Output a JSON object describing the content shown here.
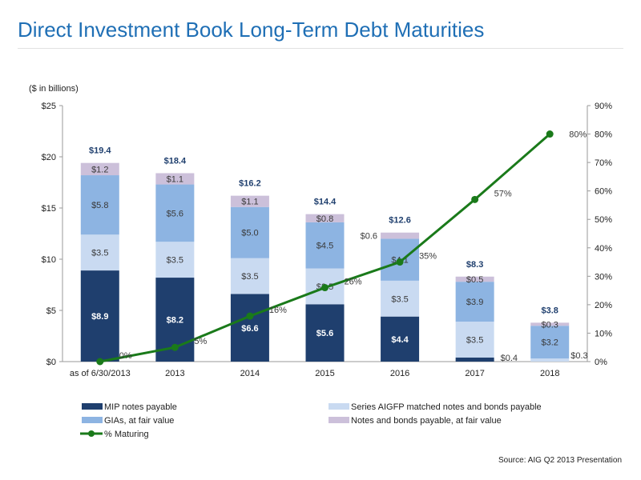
{
  "page": {
    "title": "Direct Investment Book Long-Term Debt Maturities",
    "source": "Source:  AIG Q2 2013 Presentation"
  },
  "chart_data": {
    "type": "bar",
    "stacked": true,
    "unit_note": "($ in billions)",
    "categories": [
      "as of 6/30/2013",
      "2013",
      "2014",
      "2015",
      "2016",
      "2017",
      "2018"
    ],
    "ylim": [
      0,
      25
    ],
    "y_ticks": [
      "$0",
      "$5",
      "$10",
      "$15",
      "$20",
      "$25"
    ],
    "y2lim": [
      0,
      90
    ],
    "y2_ticks": [
      "0%",
      "10%",
      "20%",
      "30%",
      "40%",
      "50%",
      "60%",
      "70%",
      "80%",
      "90%"
    ],
    "grid": false,
    "legend_position": "bottom",
    "series": [
      {
        "name": "MIP notes payable",
        "color": "#1f3f6e",
        "values": [
          8.9,
          8.2,
          6.6,
          5.6,
          4.4,
          0.4,
          0
        ],
        "labels": [
          "$8.9",
          "$8.2",
          "$6.6",
          "$5.6",
          "$4.4",
          "$0.4",
          ""
        ]
      },
      {
        "name": "Series AIGFP matched notes and bonds payable",
        "color": "#c9daf1",
        "values": [
          3.5,
          3.5,
          3.5,
          3.5,
          3.5,
          3.5,
          0.3
        ],
        "labels": [
          "$3.5",
          "$3.5",
          "$3.5",
          "$3.5",
          "$3.5",
          "$3.5",
          "$0.3"
        ]
      },
      {
        "name": "GIAs, at fair value",
        "color": "#8db4e2",
        "values": [
          5.8,
          5.6,
          5.0,
          4.5,
          4.1,
          3.9,
          3.2
        ],
        "labels": [
          "$5.8",
          "$5.6",
          "$5.0",
          "$4.5",
          "$4.1",
          "$3.9",
          "$3.2"
        ]
      },
      {
        "name": "Notes and bonds payable, at fair value",
        "color": "#ccc0da",
        "values": [
          1.2,
          1.1,
          1.1,
          0.8,
          0.6,
          0.5,
          0.3
        ],
        "labels": [
          "$1.2",
          "$1.1",
          "$1.1",
          "$0.8",
          "$0.6",
          "$0.5",
          "$0.3"
        ]
      }
    ],
    "totals": [
      "$19.4",
      "$18.4",
      "$16.2",
      "$14.4",
      "$12.6",
      "$8.3",
      "$3.8"
    ],
    "line_series": {
      "name": "% Maturing",
      "color": "#1a7a1a",
      "axis": "right",
      "values": [
        0,
        5,
        16,
        26,
        35,
        57,
        80
      ],
      "labels": [
        "0%",
        "5%",
        "16%",
        "26%",
        "35%",
        "57%",
        "80%"
      ]
    }
  }
}
